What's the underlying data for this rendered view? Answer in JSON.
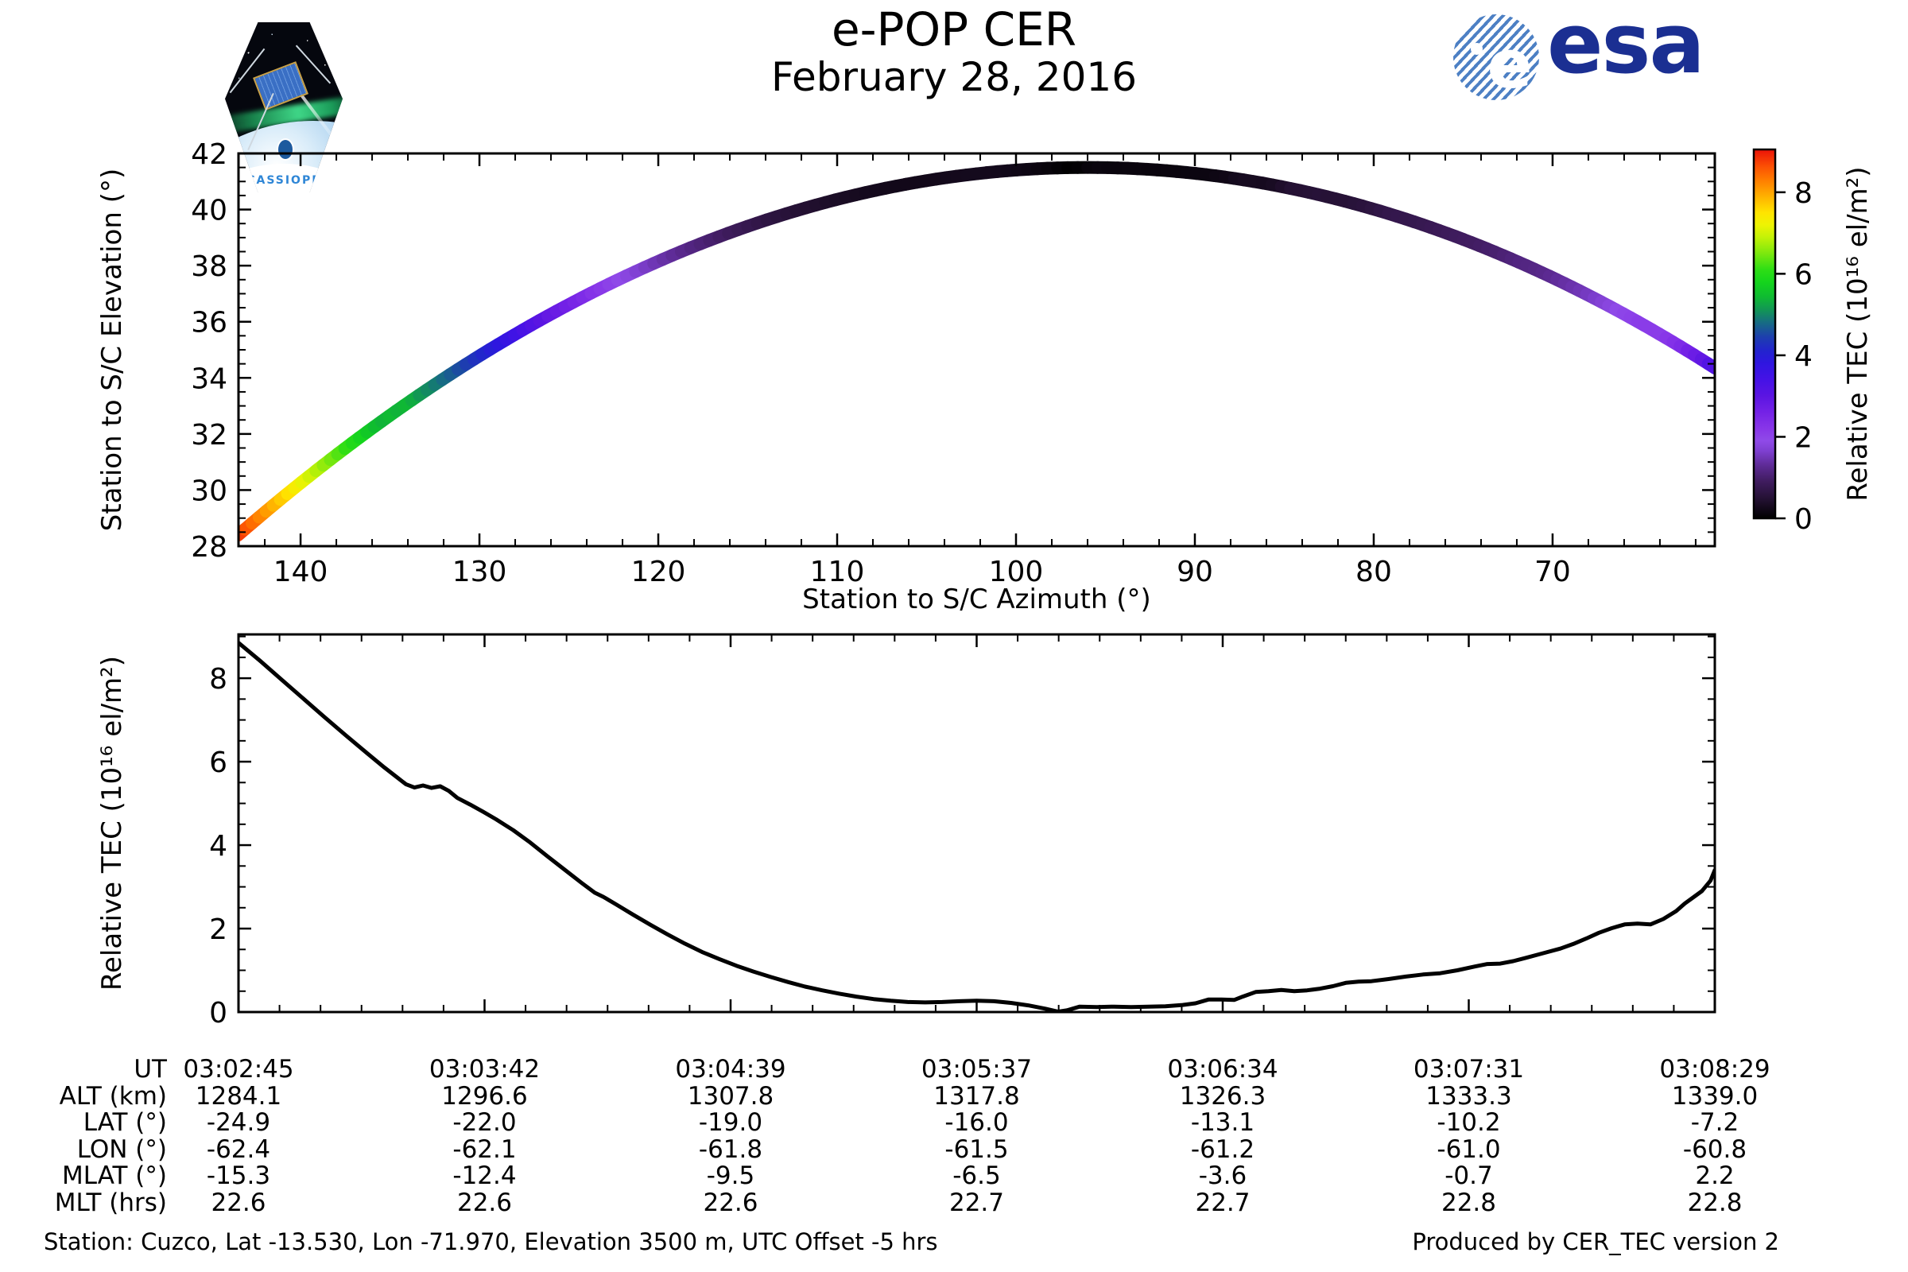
{
  "header": {
    "title": "e-POP CER",
    "date": "February 28, 2016"
  },
  "logos": {
    "cassiope_label": "CASSIOPE",
    "esa_wordmark": "esa",
    "esa_globe_letter": "e"
  },
  "colors": {
    "axis": "#000000",
    "curve": "#000000",
    "esa_blue": "#1b2f92",
    "esa_globe_stripe": "#4d80c4",
    "patch_text_blue": "#2e86d6"
  },
  "chart_data": [
    {
      "type": "scatter",
      "name": "station-to-spacecraft-track",
      "xlabel": "Station to S/C Azimuth (°)",
      "ylabel": "Station to S/C Elevation (°)",
      "xlim": [
        143.47,
        60.93
      ],
      "ylim": [
        28,
        42
      ],
      "x_ticks": [
        140,
        130,
        120,
        110,
        100,
        90,
        80,
        70
      ],
      "x_minor_step": 2,
      "y_ticks": [
        28,
        30,
        32,
        34,
        36,
        38,
        40,
        42
      ],
      "y_minor_step": 0.5,
      "track": {
        "az_start": 143.5,
        "az_end": 60.9,
        "az_peak": 96.0,
        "el_peak": 41.5,
        "el_start": 28.4,
        "el_end": 34.3,
        "parabola_k": 0.00581,
        "ease": 0.18,
        "duration_s": 344,
        "stroke_px": 16,
        "color_by": "relative_tec"
      },
      "colorbar": {
        "label": "Relative TEC (10¹⁶ el/m²)",
        "vmin": 0,
        "vmax": 9.05,
        "ticks": [
          0,
          2,
          4,
          6,
          8
        ],
        "stops": [
          [
            0.0,
            "#000000"
          ],
          [
            0.45,
            "#221030"
          ],
          [
            0.9,
            "#3f1c5e"
          ],
          [
            1.3,
            "#5e2b96"
          ],
          [
            1.65,
            "#7e3fd0"
          ],
          [
            1.9,
            "#8f4ae8"
          ],
          [
            2.2,
            "#8836e8"
          ],
          [
            2.6,
            "#7422e6"
          ],
          [
            3.0,
            "#5b15e2"
          ],
          [
            3.4,
            "#4512e6"
          ],
          [
            3.8,
            "#2f16e0"
          ],
          [
            4.1,
            "#2323cf"
          ],
          [
            4.45,
            "#1d3fae"
          ],
          [
            4.8,
            "#176b84"
          ],
          [
            5.1,
            "#129457"
          ],
          [
            5.45,
            "#0fbc30"
          ],
          [
            5.8,
            "#15d51c"
          ],
          [
            6.1,
            "#2ede15"
          ],
          [
            6.5,
            "#7ce80e"
          ],
          [
            6.9,
            "#c4f207"
          ],
          [
            7.2,
            "#eef303"
          ],
          [
            7.5,
            "#ffe400"
          ],
          [
            7.9,
            "#ffb100"
          ],
          [
            8.3,
            "#ff7d00"
          ],
          [
            8.65,
            "#fb4e04"
          ],
          [
            9.05,
            "#ea1208"
          ]
        ]
      }
    },
    {
      "type": "line",
      "name": "relative-tec-time-series",
      "ylabel": "Relative TEC (10¹⁶ el/m²)",
      "ylim": [
        0,
        9.05
      ],
      "y_ticks": [
        0,
        2,
        4,
        6,
        8
      ],
      "y_minor_step": 0.5,
      "x_range_s": [
        0,
        344
      ],
      "x_tick_times": [
        "03:02:45",
        "03:03:42",
        "03:04:39",
        "03:05:37",
        "03:06:34",
        "03:07:31",
        "03:08:29"
      ],
      "x_minor_divisions": 6,
      "series": [
        {
          "name": "Relative TEC",
          "points_t_tec": [
            [
              0,
              8.85
            ],
            [
              5,
              8.42
            ],
            [
              10,
              7.97
            ],
            [
              15,
              7.52
            ],
            [
              20,
              7.07
            ],
            [
              25,
              6.63
            ],
            [
              30,
              6.2
            ],
            [
              34,
              5.86
            ],
            [
              37,
              5.62
            ],
            [
              39,
              5.46
            ],
            [
              41,
              5.38
            ],
            [
              43,
              5.43
            ],
            [
              45,
              5.37
            ],
            [
              47,
              5.41
            ],
            [
              49,
              5.3
            ],
            [
              51,
              5.13
            ],
            [
              54,
              4.97
            ],
            [
              57,
              4.8
            ],
            [
              60,
              4.62
            ],
            [
              64,
              4.36
            ],
            [
              68,
              4.06
            ],
            [
              72,
              3.73
            ],
            [
              76,
              3.41
            ],
            [
              80,
              3.09
            ],
            [
              83,
              2.86
            ],
            [
              85,
              2.76
            ],
            [
              88,
              2.58
            ],
            [
              92,
              2.33
            ],
            [
              96,
              2.09
            ],
            [
              100,
              1.86
            ],
            [
              104,
              1.64
            ],
            [
              108,
              1.44
            ],
            [
              112,
              1.27
            ],
            [
              116,
              1.11
            ],
            [
              120,
              0.97
            ],
            [
              124,
              0.84
            ],
            [
              128,
              0.72
            ],
            [
              132,
              0.61
            ],
            [
              136,
              0.52
            ],
            [
              140,
              0.44
            ],
            [
              144,
              0.37
            ],
            [
              148,
              0.31
            ],
            [
              152,
              0.27
            ],
            [
              156,
              0.24
            ],
            [
              160,
              0.23
            ],
            [
              164,
              0.24
            ],
            [
              168,
              0.26
            ],
            [
              172,
              0.27
            ],
            [
              176,
              0.26
            ],
            [
              180,
              0.22
            ],
            [
              184,
              0.16
            ],
            [
              188,
              0.08
            ],
            [
              191,
              0.01
            ],
            [
              193,
              0.04
            ],
            [
              196,
              0.13
            ],
            [
              200,
              0.12
            ],
            [
              204,
              0.13
            ],
            [
              208,
              0.12
            ],
            [
              212,
              0.13
            ],
            [
              216,
              0.14
            ],
            [
              220,
              0.17
            ],
            [
              223,
              0.21
            ],
            [
              226,
              0.3
            ],
            [
              229,
              0.3
            ],
            [
              232,
              0.29
            ],
            [
              234,
              0.37
            ],
            [
              237,
              0.48
            ],
            [
              240,
              0.5
            ],
            [
              243,
              0.53
            ],
            [
              246,
              0.5
            ],
            [
              249,
              0.52
            ],
            [
              252,
              0.56
            ],
            [
              255,
              0.62
            ],
            [
              258,
              0.7
            ],
            [
              261,
              0.73
            ],
            [
              264,
              0.74
            ],
            [
              268,
              0.79
            ],
            [
              272,
              0.85
            ],
            [
              276,
              0.9
            ],
            [
              280,
              0.93
            ],
            [
              284,
              1.0
            ],
            [
              288,
              1.09
            ],
            [
              291,
              1.15
            ],
            [
              294,
              1.16
            ],
            [
              297,
              1.22
            ],
            [
              300,
              1.3
            ],
            [
              304,
              1.41
            ],
            [
              308,
              1.52
            ],
            [
              311,
              1.63
            ],
            [
              314,
              1.76
            ],
            [
              317,
              1.9
            ],
            [
              320,
              2.01
            ],
            [
              323,
              2.1
            ],
            [
              326,
              2.12
            ],
            [
              329,
              2.1
            ],
            [
              332,
              2.23
            ],
            [
              335,
              2.42
            ],
            [
              337,
              2.6
            ],
            [
              339,
              2.75
            ],
            [
              341,
              2.9
            ],
            [
              343,
              3.15
            ],
            [
              344,
              3.4
            ]
          ]
        }
      ]
    }
  ],
  "table": {
    "row_labels": [
      "UT",
      "ALT (km)",
      "LAT (°)",
      "LON (°)",
      "MLAT (°)",
      "MLT (hrs)"
    ],
    "rows": [
      [
        "03:02:45",
        "03:03:42",
        "03:04:39",
        "03:05:37",
        "03:06:34",
        "03:07:31",
        "03:08:29"
      ],
      [
        "1284.1",
        "1296.6",
        "1307.8",
        "1317.8",
        "1326.3",
        "1333.3",
        "1339.0"
      ],
      [
        "-24.9",
        "-22.0",
        "-19.0",
        "-16.0",
        "-13.1",
        "-10.2",
        "-7.2"
      ],
      [
        "-62.4",
        "-62.1",
        "-61.8",
        "-61.5",
        "-61.2",
        "-61.0",
        "-60.8"
      ],
      [
        "-15.3",
        "-12.4",
        "-9.5",
        "-6.5",
        "-3.6",
        "-0.7",
        "2.2"
      ],
      [
        "22.6",
        "22.6",
        "22.6",
        "22.7",
        "22.7",
        "22.8",
        "22.8"
      ]
    ]
  },
  "footer": {
    "left": "Station: Cuzco, Lat -13.530, Lon -71.970, Elevation 3500 m, UTC Offset -5 hrs",
    "right": "Produced by CER_TEC version 2"
  }
}
